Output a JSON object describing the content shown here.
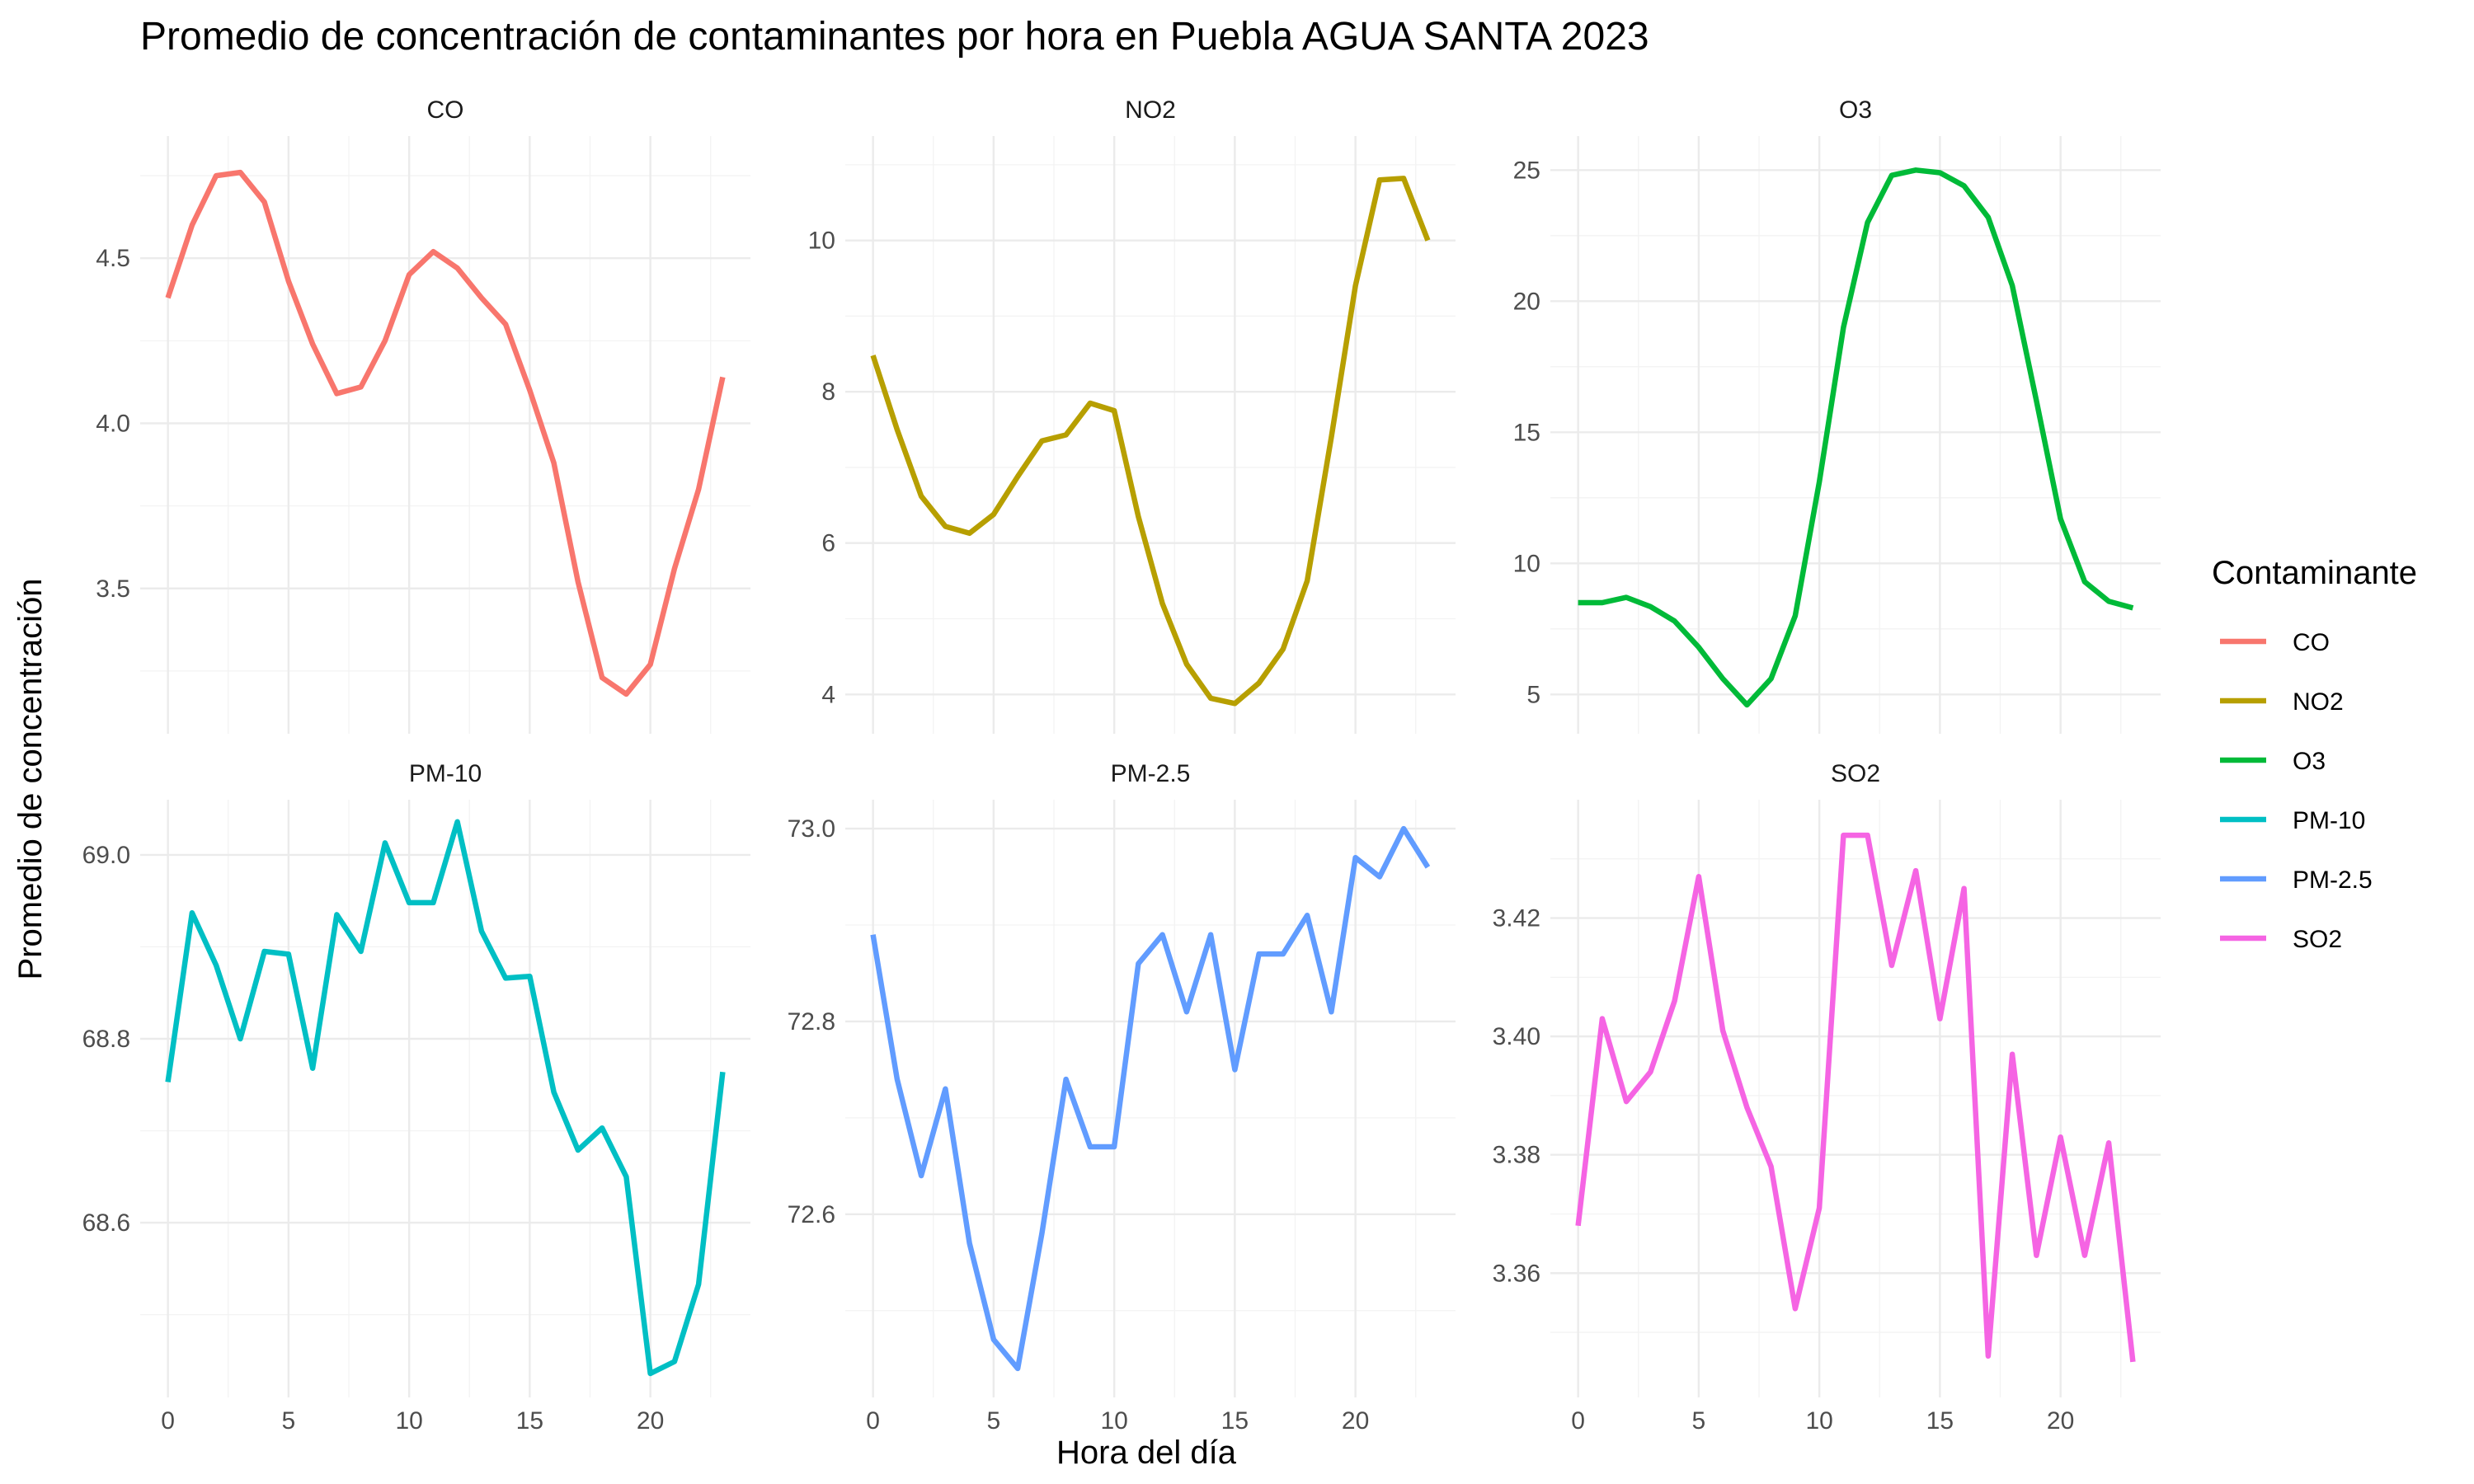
{
  "title": "Promedio de concentración de contaminantes por hora en Puebla AGUA SANTA 2023",
  "xlabel": "Hora del día",
  "ylabel": "Promedio de concentración",
  "legend": {
    "title": "Contaminante",
    "entries": [
      {
        "label": "CO",
        "color": "#F8766D"
      },
      {
        "label": "NO2",
        "color": "#B79F00"
      },
      {
        "label": "O3",
        "color": "#00BA38"
      },
      {
        "label": "PM-10",
        "color": "#00BFC4"
      },
      {
        "label": "PM-2.5",
        "color": "#619CFF"
      },
      {
        "label": "SO2",
        "color": "#F564E3"
      }
    ]
  },
  "chart_data": {
    "type": "line",
    "facet_layout": "3 columns x 2 rows, free y scales",
    "legend_position": "right",
    "grid": true,
    "x": [
      0,
      1,
      2,
      3,
      4,
      5,
      6,
      7,
      8,
      9,
      10,
      11,
      12,
      13,
      14,
      15,
      16,
      17,
      18,
      19,
      20,
      21,
      22,
      23
    ],
    "xlim": [
      -1.15,
      24.15
    ],
    "x_ticks": [
      0,
      5,
      10,
      15,
      20
    ],
    "panels": [
      {
        "name": "CO",
        "color": "#F8766D",
        "ylim": [
          3.06,
          4.87
        ],
        "y_ticks": [
          3.5,
          4.0,
          4.5
        ],
        "y_tick_labels": [
          "3.5",
          "4.0",
          "4.5"
        ],
        "values": [
          4.38,
          4.6,
          4.75,
          4.76,
          4.67,
          4.43,
          4.24,
          4.09,
          4.11,
          4.25,
          4.45,
          4.52,
          4.47,
          4.38,
          4.3,
          4.1,
          3.88,
          3.52,
          3.23,
          3.18,
          3.27,
          3.56,
          3.8,
          4.14
        ]
      },
      {
        "name": "NO2",
        "color": "#B79F00",
        "ylim": [
          3.48,
          11.38
        ],
        "y_ticks": [
          4,
          6,
          8,
          10
        ],
        "y_tick_labels": [
          "4",
          "6",
          "8",
          "10"
        ],
        "values": [
          8.48,
          7.5,
          6.62,
          6.22,
          6.13,
          6.38,
          6.88,
          7.35,
          7.43,
          7.85,
          7.75,
          6.35,
          5.2,
          4.4,
          3.95,
          3.88,
          4.15,
          4.6,
          5.5,
          7.4,
          9.4,
          10.8,
          10.82,
          10.0
        ]
      },
      {
        "name": "O3",
        "color": "#00BA38",
        "ylim": [
          3.5,
          26.3
        ],
        "y_ticks": [
          5,
          10,
          15,
          20,
          25
        ],
        "y_tick_labels": [
          "5",
          "10",
          "15",
          "20",
          "25"
        ],
        "values": [
          8.5,
          8.5,
          8.7,
          8.35,
          7.8,
          6.8,
          5.6,
          4.6,
          5.6,
          8.0,
          13.1,
          19.0,
          23.0,
          24.8,
          25.0,
          24.9,
          24.4,
          23.2,
          20.6,
          16.2,
          11.7,
          9.3,
          8.55,
          8.3
        ]
      },
      {
        "name": "PM-10",
        "color": "#00BFC4",
        "ylim": [
          68.41,
          69.06
        ],
        "y_ticks": [
          68.6,
          68.8,
          69.0
        ],
        "y_tick_labels": [
          "68.6",
          "68.8",
          "69.0"
        ],
        "values": [
          68.753,
          68.937,
          68.88,
          68.8,
          68.895,
          68.892,
          68.768,
          68.935,
          68.895,
          69.013,
          68.948,
          68.948,
          69.036,
          68.917,
          68.866,
          68.868,
          68.742,
          68.679,
          68.703,
          68.65,
          68.436,
          68.449,
          68.533,
          68.764
        ]
      },
      {
        "name": "PM-2.5",
        "color": "#619CFF",
        "ylim": [
          72.41,
          73.03
        ],
        "y_ticks": [
          72.6,
          72.8,
          73.0
        ],
        "y_tick_labels": [
          "72.6",
          "72.8",
          "73.0"
        ],
        "values": [
          72.89,
          72.74,
          72.64,
          72.73,
          72.57,
          72.47,
          72.44,
          72.58,
          72.74,
          72.67,
          72.67,
          72.86,
          72.89,
          72.81,
          72.89,
          72.75,
          72.87,
          72.87,
          72.91,
          72.81,
          72.97,
          72.95,
          73.0,
          72.96
        ]
      },
      {
        "name": "SO2",
        "color": "#F564E3",
        "ylim": [
          3.339,
          3.44
        ],
        "y_ticks": [
          3.36,
          3.38,
          3.4,
          3.42
        ],
        "y_tick_labels": [
          "3.36",
          "3.38",
          "3.40",
          "3.42"
        ],
        "values": [
          3.368,
          3.403,
          3.389,
          3.394,
          3.406,
          3.427,
          3.401,
          3.388,
          3.378,
          3.354,
          3.371,
          3.434,
          3.434,
          3.412,
          3.428,
          3.403,
          3.425,
          3.346,
          3.397,
          3.363,
          3.383,
          3.363,
          3.382,
          3.345
        ]
      }
    ]
  }
}
